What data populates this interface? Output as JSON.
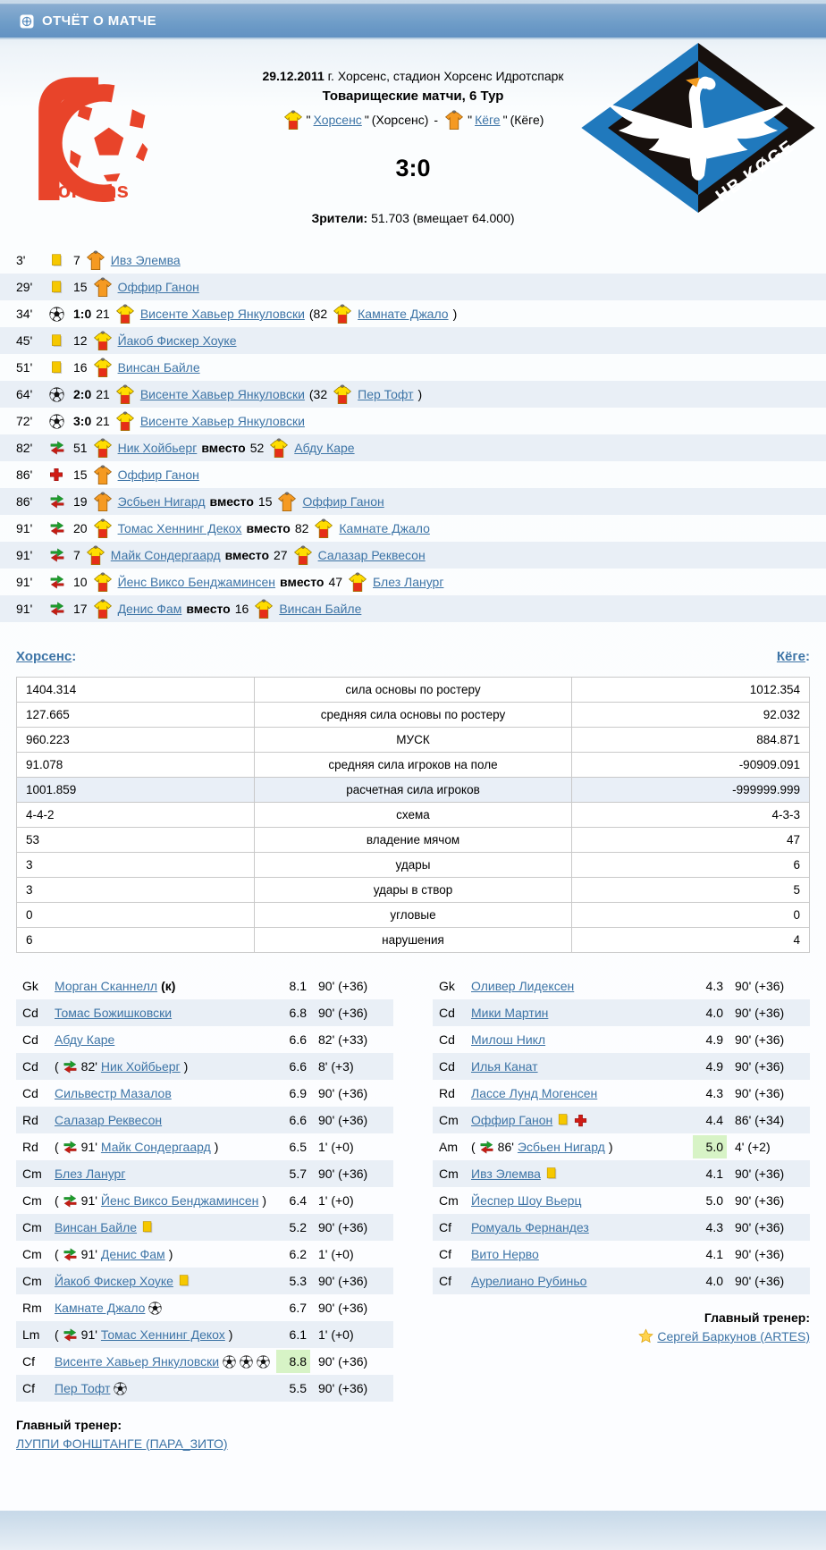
{
  "header": {
    "title": "ОТЧЁТ О МАТЧЕ"
  },
  "match": {
    "date": "29.12.2011",
    "venue": "г. Хорсенс, стадион Хорсенс Идротспарк",
    "round": "Товарищеские матчи, 6 Тур",
    "line3": {
      "quote": "\"",
      "dash": "-",
      "home_name": "Хорсенс",
      "home_alias": "(Хорсенс)",
      "away_name": "Кёге",
      "away_alias": "(Кёге)"
    },
    "score": "3:0",
    "attendance_label": "Зрители:",
    "attendance": "51.703 (вмещает 64.000)",
    "home_logo_text": "Horsens",
    "away_logo_text": "HB KØGE"
  },
  "colors": {
    "accent_blue": "#6f9dc8",
    "link_blue": "#3d74a6",
    "row_alt": "#e9eff6",
    "best_rating_green": "#d7f3c6",
    "home_shirt": "#ffdd00/#e62e18",
    "away_shirt": "#f59a22",
    "logo_red": "#e8442a",
    "logo_blue": "#2079bd"
  },
  "events": [
    {
      "minute": "3'",
      "type": "card",
      "player": {
        "number": "7",
        "shirt": "away",
        "name": "Ивз Элемва"
      }
    },
    {
      "minute": "29'",
      "type": "card",
      "player": {
        "number": "15",
        "shirt": "away",
        "name": "Оффир Ганон"
      }
    },
    {
      "minute": "34'",
      "type": "goal",
      "score": "1:0",
      "player": {
        "number": "21",
        "shirt": "home",
        "name": "Висенте Хавьер Янкуловски"
      },
      "assist": {
        "number": "82",
        "shirt": "home",
        "name": "Камнате Джало"
      }
    },
    {
      "minute": "45'",
      "type": "card",
      "player": {
        "number": "12",
        "shirt": "home",
        "name": "Йакоб Фискер Хоуке"
      }
    },
    {
      "minute": "51'",
      "type": "card",
      "player": {
        "number": "16",
        "shirt": "home",
        "name": "Винсан Байле"
      }
    },
    {
      "minute": "64'",
      "type": "goal",
      "score": "2:0",
      "player": {
        "number": "21",
        "shirt": "home",
        "name": "Висенте Хавьер Янкуловски"
      },
      "assist": {
        "number": "32",
        "shirt": "home",
        "name": "Пер Тофт"
      }
    },
    {
      "minute": "72'",
      "type": "goal",
      "score": "3:0",
      "player": {
        "number": "21",
        "shirt": "home",
        "name": "Висенте Хавьер Янкуловски"
      }
    },
    {
      "minute": "82'",
      "type": "sub",
      "word": "вместо",
      "in": {
        "number": "51",
        "shirt": "home",
        "name": "Ник Хойбьерг"
      },
      "out": {
        "number": "52",
        "shirt": "home",
        "name": "Абду Каре"
      }
    },
    {
      "minute": "86'",
      "type": "injury",
      "player": {
        "number": "15",
        "shirt": "away",
        "name": "Оффир Ганон"
      }
    },
    {
      "minute": "86'",
      "type": "sub",
      "word": "вместо",
      "in": {
        "number": "19",
        "shirt": "away",
        "name": "Эсбьен Нигард"
      },
      "out": {
        "number": "15",
        "shirt": "away",
        "name": "Оффир Ганон"
      }
    },
    {
      "minute": "91'",
      "type": "sub",
      "word": "вместо",
      "in": {
        "number": "20",
        "shirt": "home",
        "name": "Томас Хеннинг Декох"
      },
      "out": {
        "number": "82",
        "shirt": "home",
        "name": "Камнате Джало"
      }
    },
    {
      "minute": "91'",
      "type": "sub",
      "word": "вместо",
      "in": {
        "number": "7",
        "shirt": "home",
        "name": "Майк Сондергаард"
      },
      "out": {
        "number": "27",
        "shirt": "home",
        "name": "Салазар Реквесон"
      }
    },
    {
      "minute": "91'",
      "type": "sub",
      "word": "вместо",
      "in": {
        "number": "10",
        "shirt": "home",
        "name": "Йенс Виксо Бенджаминсен"
      },
      "out": {
        "number": "47",
        "shirt": "home",
        "name": "Блез Ланург"
      }
    },
    {
      "minute": "91'",
      "type": "sub",
      "word": "вместо",
      "in": {
        "number": "17",
        "shirt": "home",
        "name": "Денис Фам"
      },
      "out": {
        "number": "16",
        "shirt": "home",
        "name": "Винсан Байле"
      }
    }
  ],
  "stats": {
    "home_label": "Хорсенс",
    "away_label": "Кёге",
    "colon": ":",
    "rows": [
      {
        "home": "1404.314",
        "label": "сила основы по ростеру",
        "away": "1012.354"
      },
      {
        "home": "127.665",
        "label": "средняя сила основы по ростеру",
        "away": "92.032"
      },
      {
        "home": "960.223",
        "label": "МУСК",
        "away": "884.871"
      },
      {
        "home": "91.078",
        "label": "средняя сила игроков на поле",
        "away": "-90909.091"
      },
      {
        "home": "1001.859",
        "label": "расчетная сила игроков",
        "away": "-999999.999",
        "highlight": true
      },
      {
        "home": "4-4-2",
        "label": "схема",
        "away": "4-3-3"
      },
      {
        "home": "53",
        "label": "владение мячом",
        "away": "47"
      },
      {
        "home": "3",
        "label": "удары",
        "away": "6"
      },
      {
        "home": "3",
        "label": "удары в створ",
        "away": "5"
      },
      {
        "home": "0",
        "label": "угловые",
        "away": "0"
      },
      {
        "home": "6",
        "label": "нарушения",
        "away": "4"
      }
    ]
  },
  "lineups": {
    "home": {
      "coach_label": "Главный тренер:",
      "coach": "ЛУППИ ФОНШТАНГЕ (ПАРА_ЗИТО)",
      "players": [
        {
          "pos": "Gk",
          "name": "Морган Сканнелл",
          "captain": "(к)",
          "rating": "8.1",
          "minutes": "90' (+36)"
        },
        {
          "pos": "Cd",
          "name": "Томас Божишковски",
          "rating": "6.8",
          "minutes": "90' (+36)"
        },
        {
          "pos": "Cd",
          "name": "Абду Каре",
          "rating": "6.6",
          "minutes": "82' (+33)"
        },
        {
          "pos": "Cd",
          "sub_minute": "82'",
          "name": "Ник Хойбьерг",
          "rating": "6.6",
          "minutes": "8' (+3)"
        },
        {
          "pos": "Cd",
          "name": "Сильвестр Мазалов",
          "rating": "6.9",
          "minutes": "90' (+36)"
        },
        {
          "pos": "Rd",
          "name": "Салазар Реквесон",
          "rating": "6.6",
          "minutes": "90' (+36)"
        },
        {
          "pos": "Rd",
          "sub_minute": "91'",
          "name": "Майк Сондергаард",
          "rating": "6.5",
          "minutes": "1' (+0)"
        },
        {
          "pos": "Cm",
          "name": "Блез Ланург",
          "rating": "5.7",
          "minutes": "90' (+36)"
        },
        {
          "pos": "Cm",
          "sub_minute": "91'",
          "name": "Йенс Виксо Бенджаминсен",
          "rating": "6.4",
          "minutes": "1' (+0)"
        },
        {
          "pos": "Cm",
          "name": "Винсан Байле",
          "icons": [
            "card"
          ],
          "rating": "5.2",
          "minutes": "90' (+36)"
        },
        {
          "pos": "Cm",
          "sub_minute": "91'",
          "name": "Денис Фам",
          "rating": "6.2",
          "minutes": "1' (+0)"
        },
        {
          "pos": "Cm",
          "name": "Йакоб Фискер Хоуке",
          "icons": [
            "card"
          ],
          "rating": "5.3",
          "minutes": "90' (+36)"
        },
        {
          "pos": "Rm",
          "name": "Камнате Джало",
          "icons": [
            "ball"
          ],
          "rating": "6.7",
          "minutes": "90' (+36)"
        },
        {
          "pos": "Lm",
          "sub_minute": "91'",
          "name": "Томас Хеннинг Декох",
          "rating": "6.1",
          "minutes": "1' (+0)"
        },
        {
          "pos": "Cf",
          "name": "Висенте Хавьер Янкуловски",
          "icons": [
            "ball",
            "ball",
            "ball"
          ],
          "rating": "8.8",
          "best": true,
          "minutes": "90' (+36)"
        },
        {
          "pos": "Cf",
          "name": "Пер Тофт",
          "icons": [
            "ball"
          ],
          "rating": "5.5",
          "minutes": "90' (+36)"
        }
      ]
    },
    "away": {
      "coach_label": "Главный тренер:",
      "coach": "Сергей Баркунов (ARTES)",
      "players": [
        {
          "pos": "Gk",
          "name": "Оливер Лидексен",
          "rating": "4.3",
          "minutes": "90' (+36)"
        },
        {
          "pos": "Cd",
          "name": "Мики Мартин",
          "rating": "4.0",
          "minutes": "90' (+36)"
        },
        {
          "pos": "Cd",
          "name": "Милош Никл",
          "rating": "4.9",
          "minutes": "90' (+36)"
        },
        {
          "pos": "Cd",
          "name": "Илья Канат",
          "rating": "4.9",
          "minutes": "90' (+36)"
        },
        {
          "pos": "Rd",
          "name": "Лассе Лунд Могенсен",
          "rating": "4.3",
          "minutes": "90' (+36)"
        },
        {
          "pos": "Cm",
          "name": "Оффир Ганон",
          "icons": [
            "card",
            "cross"
          ],
          "rating": "4.4",
          "minutes": "86' (+34)"
        },
        {
          "pos": "Am",
          "sub_minute": "86'",
          "name": "Эсбьен Нигард",
          "rating": "5.0",
          "best": true,
          "minutes": "4' (+2)"
        },
        {
          "pos": "Cm",
          "name": "Ивз Элемва",
          "icons": [
            "card"
          ],
          "rating": "4.1",
          "minutes": "90' (+36)"
        },
        {
          "pos": "Cm",
          "name": "Йеспер Шоу Вьерц",
          "rating": "5.0",
          "minutes": "90' (+36)"
        },
        {
          "pos": "Cf",
          "name": "Ромуаль Фернандез",
          "rating": "4.3",
          "minutes": "90' (+36)"
        },
        {
          "pos": "Cf",
          "name": "Вито Нерво",
          "rating": "4.1",
          "minutes": "90' (+36)"
        },
        {
          "pos": "Cf",
          "name": "Аурелиано Рубиньо",
          "rating": "4.0",
          "minutes": "90' (+36)"
        }
      ]
    }
  }
}
